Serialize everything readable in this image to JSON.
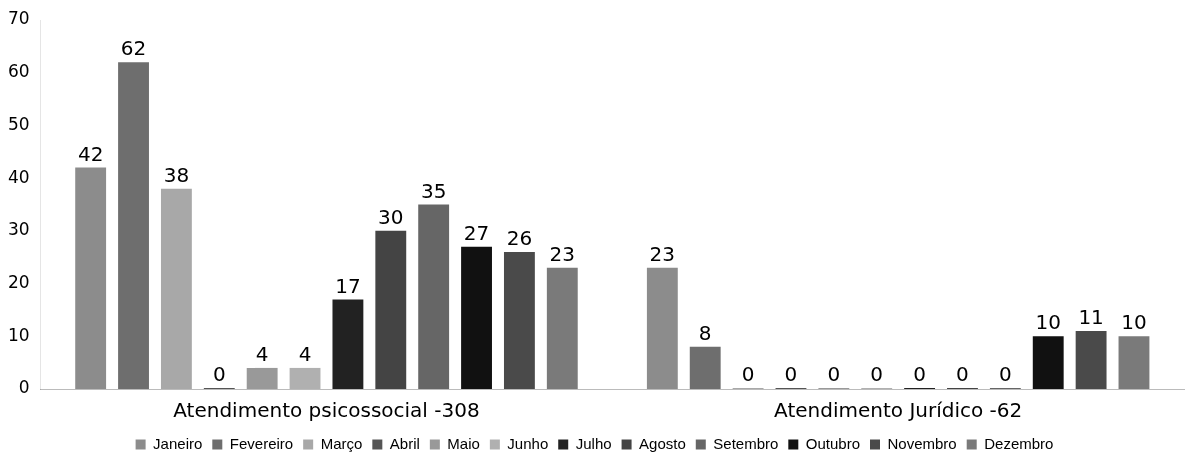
{
  "chart_data": {
    "type": "bar",
    "categories": [
      "Atendimento psicossocial -308",
      "Atendimento Jurídico -62"
    ],
    "series": [
      {
        "name": "Janeiro",
        "color": "#8c8c8c",
        "values": [
          42,
          23
        ]
      },
      {
        "name": "Fevereiro",
        "color": "#6e6e6e",
        "values": [
          62,
          8
        ]
      },
      {
        "name": "Março",
        "color": "#a8a8a8",
        "values": [
          38,
          0
        ]
      },
      {
        "name": "Abril",
        "color": "#555555",
        "values": [
          0,
          0
        ]
      },
      {
        "name": "Maio",
        "color": "#999999",
        "values": [
          4,
          0
        ]
      },
      {
        "name": "Junho",
        "color": "#b0b0b0",
        "values": [
          4,
          0
        ]
      },
      {
        "name": "Julho",
        "color": "#222222",
        "values": [
          17,
          0
        ]
      },
      {
        "name": "Agosto",
        "color": "#444444",
        "values": [
          30,
          0
        ]
      },
      {
        "name": "Setembro",
        "color": "#666666",
        "values": [
          35,
          0
        ]
      },
      {
        "name": "Outubro",
        "color": "#111111",
        "values": [
          27,
          10
        ]
      },
      {
        "name": "Novembro",
        "color": "#4a4a4a",
        "values": [
          26,
          11
        ]
      },
      {
        "name": "Dezembro",
        "color": "#7a7a7a",
        "values": [
          23,
          10
        ]
      }
    ],
    "ylim": [
      0,
      70
    ],
    "yticks": [
      0,
      10,
      20,
      30,
      40,
      50,
      60,
      70
    ],
    "grid": false,
    "legend": "bottom",
    "data_labels": true
  }
}
